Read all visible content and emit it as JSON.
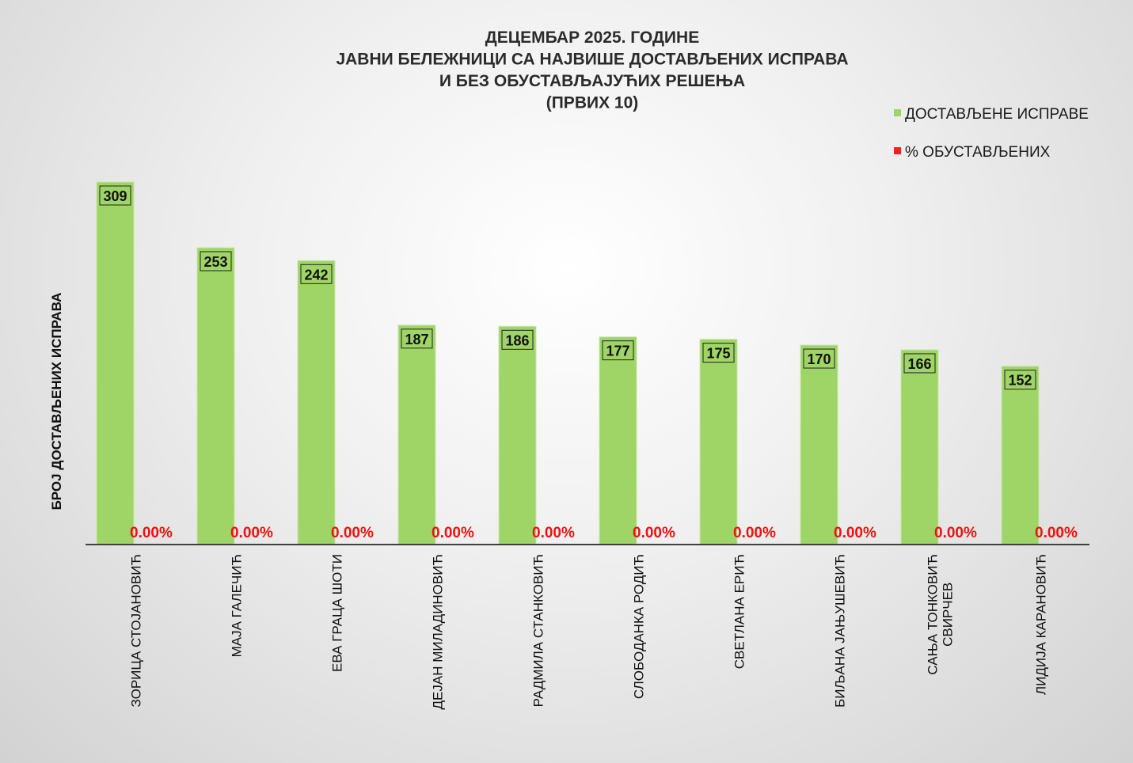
{
  "chart_data": {
    "type": "bar",
    "title": [
      "ДЕЦЕМБАР 2025. ГОДИНЕ",
      "ЈАВНИ БЕЛЕЖНИЦИ СА НАЈВИШЕ ДОСТАВЉЕНИХ  ИСПРАВА",
      "И БЕЗ ОБУСТАВЉАЈУЋИХ  РЕШЕЊА",
      "(ПРВИХ 10)"
    ],
    "ylabel": "БРОЈ ДОСТАВЉЕНИХ ИСПРАВА",
    "xlabel": "",
    "ylim": [
      0,
      309
    ],
    "grid": false,
    "legend_placement": "top-right",
    "categories": [
      [
        "ЗОРИЦА СТОЈАНОВИЋ"
      ],
      [
        "МАЈА ГАЛЕЧИЋ"
      ],
      [
        "ЕВА ГРАЦА ШОТИ"
      ],
      [
        "ДЕЈАН МИЛАДИНОВИЋ"
      ],
      [
        "РАДМИЛА СТАНКОВИЋ"
      ],
      [
        "СЛОБОДАНКА РОДИЋ"
      ],
      [
        "СВЕТЛАНА ЕРИЋ"
      ],
      [
        "БИЉАНА ЈАЊУШЕВИЋ"
      ],
      [
        "САЊА ТОНКОВИЋ",
        "СВИРЧЕВ"
      ],
      [
        "ЛИДИЈА КАРАНОВИЋ"
      ]
    ],
    "series": [
      {
        "name": "ДОСТАВЉЕНЕ  ИСПРАВЕ",
        "color": "#9fd466",
        "values": [
          309,
          253,
          242,
          187,
          186,
          177,
          175,
          170,
          166,
          152
        ],
        "labels": [
          "309",
          "253",
          "242",
          "187",
          "186",
          "177",
          "175",
          "170",
          "166",
          "152"
        ]
      },
      {
        "name": "% ОБУСТАВЉЕНИХ",
        "color": "#ee2222",
        "values": [
          0,
          0,
          0,
          0,
          0,
          0,
          0,
          0,
          0,
          0
        ],
        "labels": [
          "0.00%",
          "0.00%",
          "0.00%",
          "0.00%",
          "0.00%",
          "0.00%",
          "0.00%",
          "0.00%",
          "0.00%",
          "0.00%"
        ]
      }
    ]
  }
}
